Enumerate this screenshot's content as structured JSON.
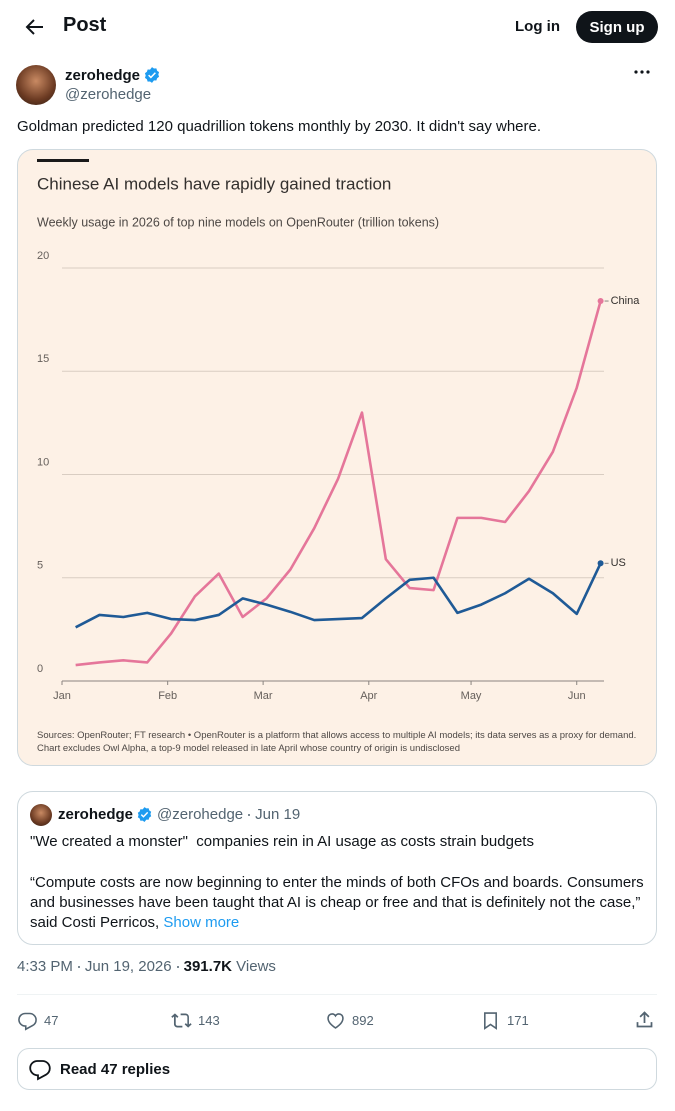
{
  "header": {
    "title": "Post",
    "login": "Log in",
    "signup": "Sign up"
  },
  "post": {
    "name": "zerohedge",
    "handle": "@zerohedge",
    "text": "Goldman predicted 120 quadrillion tokens monthly by 2030. It didn't say where.",
    "time": "4:33 PM",
    "date": "Jun 19, 2026",
    "views": "391.7K",
    "views_label": "Views",
    "stats": {
      "replies": 47,
      "reposts": 143,
      "likes": 892,
      "bookmarks": 171
    },
    "read_replies": "Read 47 replies"
  },
  "quote": {
    "name": "zerohedge",
    "handle": "@zerohedge",
    "date": "Jun 19",
    "headline": "\"We created a monster\"  companies rein in AI usage as costs strain budgets",
    "body": "“Compute costs are now beginning to enter the minds of both CFOs and boards. Consumers and businesses have been taught that AI is cheap or free and that is definitely not the case,” said Costi Perricos,",
    "show_more": "Show more"
  },
  "chart_data": {
    "type": "line",
    "title": "Chinese AI models have rapidly gained traction",
    "subtitle": "Weekly usage in 2026 of top nine models on OpenRouter (trillion tokens)",
    "note": "Sources: OpenRouter; FT research • OpenRouter is a platform that allows access to multiple AI models; its data serves as a proxy for demand. Chart excludes Owl Alpha, a top-9 model released in late April whose country of origin is undisclosed",
    "x": [
      5,
      12,
      19,
      26,
      33,
      40,
      47,
      54,
      61,
      68,
      75,
      82,
      89,
      96,
      103,
      110,
      117,
      124,
      131,
      138,
      145,
      152,
      159
    ],
    "xlim": [
      1,
      160
    ],
    "xticks": [
      {
        "value": 1,
        "label": "Jan"
      },
      {
        "value": 32,
        "label": "Feb"
      },
      {
        "value": 60,
        "label": "Mar"
      },
      {
        "value": 91,
        "label": "Apr"
      },
      {
        "value": 121,
        "label": "May"
      },
      {
        "value": 152,
        "label": "Jun"
      }
    ],
    "ylim": [
      0,
      20
    ],
    "yticks": [
      0,
      5,
      10,
      15,
      20
    ],
    "grid": true,
    "series": [
      {
        "name": "China",
        "color": "#e5769a",
        "values": [
          0.77,
          0.9,
          1.0,
          0.9,
          2.3,
          4.1,
          5.2,
          3.1,
          4.0,
          5.4,
          7.4,
          9.8,
          13.0,
          5.9,
          4.5,
          4.4,
          7.9,
          7.9,
          7.7,
          9.2,
          11.1,
          14.2,
          18.4
        ]
      },
      {
        "name": "US",
        "color": "#1f5a96",
        "values": [
          2.6,
          3.2,
          3.1,
          3.3,
          3.0,
          2.95,
          3.2,
          4.0,
          3.7,
          3.35,
          2.95,
          3.0,
          3.05,
          4.0,
          4.9,
          5.0,
          3.3,
          3.7,
          4.25,
          4.95,
          4.25,
          3.25,
          5.7
        ]
      }
    ]
  }
}
